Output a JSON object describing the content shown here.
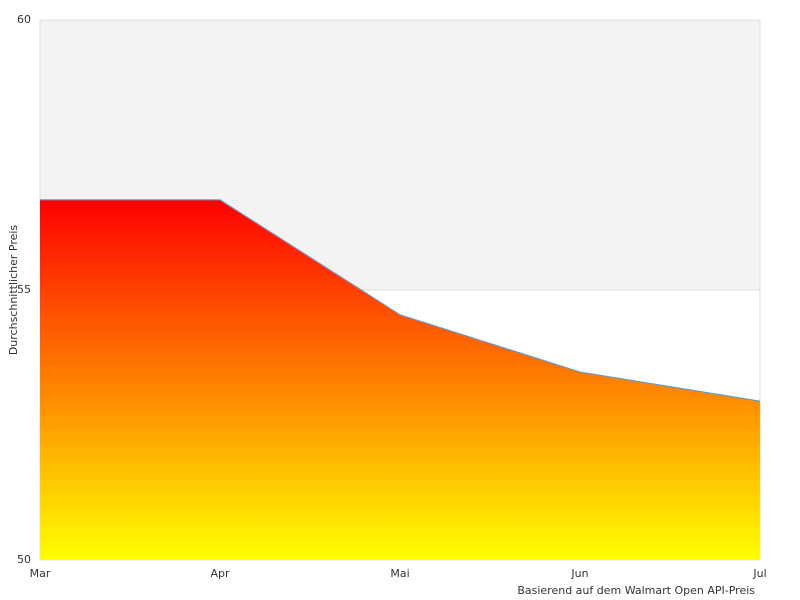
{
  "chart_data": {
    "type": "area",
    "y_label": "Durchschnittlicher Preis",
    "annotation": "Basierend auf dem Walmart Open API-Preis",
    "categories": [
      "Mar",
      "Apr",
      "Mai",
      "Jun",
      "Jul"
    ],
    "series": [
      {
        "values": [
          56.67,
          56.67,
          54.54,
          53.48,
          52.94
        ],
        "color": "#5b9bd5"
      }
    ],
    "gradient": [
      "#ff0000",
      "#ffff00"
    ],
    "band_color": "#f3f3f3",
    "ylim": [
      50,
      60
    ],
    "yticks": [
      50,
      55,
      60
    ]
  }
}
